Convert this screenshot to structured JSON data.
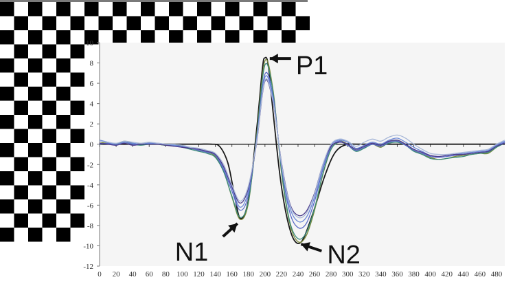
{
  "chart_data": {
    "type": "line",
    "title": "",
    "xlabel": "",
    "ylabel": "",
    "xlim": [
      0,
      490
    ],
    "ylim": [
      -12,
      10
    ],
    "x_ticks": [
      0,
      20,
      40,
      60,
      80,
      100,
      120,
      140,
      160,
      180,
      200,
      220,
      240,
      260,
      280,
      300,
      320,
      340,
      360,
      380,
      400,
      420,
      440,
      460,
      480
    ],
    "y_ticks": [
      10,
      8,
      6,
      4,
      2,
      0,
      -2,
      -4,
      -6,
      -8,
      -10,
      -12
    ],
    "grid": false,
    "legend": "none",
    "annotations": [
      {
        "label": "P1",
        "x": 200,
        "y": 8.5
      },
      {
        "label": "N1",
        "x": 170,
        "y": -7.4
      },
      {
        "label": "N2",
        "x": 237,
        "y": -9.7
      }
    ],
    "series": [
      {
        "color": "#1a1a1a",
        "x": [
          0,
          100,
          120,
          135,
          145,
          155,
          162,
          170,
          180,
          190,
          197,
          200,
          204,
          210,
          218,
          226,
          235,
          245,
          258,
          272,
          285,
          300,
          320,
          490
        ],
        "y": [
          0,
          0,
          0,
          0,
          -0.2,
          -1.8,
          -4.5,
          -7.3,
          -5.5,
          1.5,
          7.5,
          8.5,
          7.8,
          3.0,
          -3.0,
          -7.0,
          -9.4,
          -9.5,
          -6.8,
          -3.2,
          -0.8,
          0,
          0,
          0
        ]
      },
      {
        "color": "#7a8a3a",
        "x": [
          0,
          10,
          20,
          30,
          40,
          50,
          60,
          70,
          80,
          90,
          100,
          110,
          120,
          130,
          140,
          150,
          160,
          170,
          180,
          190,
          200,
          210,
          220,
          230,
          240,
          250,
          260,
          270,
          280,
          290,
          300,
          310,
          320,
          330,
          340,
          350,
          360,
          370,
          380,
          390,
          400,
          410,
          420,
          430,
          440,
          450,
          460,
          470,
          480,
          490
        ],
        "y": [
          0.1,
          0.2,
          0.0,
          0.3,
          0.1,
          0.0,
          0.1,
          0.0,
          -0.1,
          0.0,
          -0.2,
          -0.4,
          -0.6,
          -0.8,
          -1.2,
          -2.6,
          -5.2,
          -7.4,
          -5.8,
          1.0,
          8.2,
          5.2,
          -2.8,
          -7.8,
          -9.6,
          -9.0,
          -6.5,
          -3.0,
          -0.5,
          0.3,
          0.0,
          -0.6,
          -0.3,
          0.0,
          -0.3,
          0.2,
          0.4,
          0.0,
          -0.6,
          -1.0,
          -1.3,
          -1.5,
          -1.4,
          -1.2,
          -1.1,
          -1.0,
          -0.9,
          -0.9,
          -0.3,
          0.2
        ]
      },
      {
        "color": "#3a8a7a",
        "x": [
          0,
          10,
          20,
          30,
          40,
          50,
          60,
          70,
          80,
          90,
          100,
          110,
          120,
          130,
          140,
          150,
          160,
          170,
          180,
          190,
          200,
          210,
          220,
          230,
          240,
          250,
          260,
          270,
          280,
          290,
          300,
          310,
          320,
          330,
          340,
          350,
          360,
          370,
          380,
          390,
          400,
          410,
          420,
          430,
          440,
          450,
          460,
          470,
          480,
          490
        ],
        "y": [
          0.0,
          0.1,
          0.0,
          0.2,
          0.0,
          -0.1,
          0.0,
          0.0,
          -0.1,
          -0.1,
          -0.3,
          -0.5,
          -0.7,
          -0.9,
          -1.3,
          -2.7,
          -5.1,
          -7.2,
          -5.6,
          0.8,
          7.8,
          5.0,
          -2.6,
          -7.6,
          -9.3,
          -8.7,
          -6.3,
          -2.9,
          -0.5,
          0.2,
          -0.1,
          -0.7,
          -0.4,
          0.0,
          -0.2,
          0.1,
          0.2,
          -0.1,
          -0.7,
          -1.0,
          -1.4,
          -1.5,
          -1.4,
          -1.3,
          -1.2,
          -1.0,
          -0.9,
          -0.8,
          -0.3,
          0.1
        ]
      },
      {
        "color": "#5a6ac8",
        "x": [
          0,
          10,
          20,
          30,
          40,
          50,
          60,
          70,
          80,
          90,
          100,
          110,
          120,
          130,
          140,
          150,
          160,
          170,
          180,
          190,
          200,
          210,
          220,
          230,
          240,
          250,
          260,
          270,
          280,
          290,
          300,
          310,
          320,
          330,
          340,
          350,
          360,
          370,
          380,
          390,
          400,
          410,
          420,
          430,
          440,
          450,
          460,
          470,
          480,
          490
        ],
        "y": [
          0.0,
          0.1,
          -0.1,
          0.2,
          0.0,
          0.0,
          0.1,
          0.0,
          0.0,
          -0.1,
          -0.3,
          -0.4,
          -0.6,
          -0.8,
          -1.1,
          -2.5,
          -4.6,
          -6.5,
          -5.0,
          0.6,
          6.9,
          4.6,
          -2.2,
          -6.7,
          -8.2,
          -7.8,
          -5.6,
          -2.5,
          -0.3,
          0.3,
          -0.1,
          -0.6,
          -0.3,
          0.0,
          -0.2,
          0.2,
          0.3,
          -0.1,
          -0.6,
          -0.9,
          -1.2,
          -1.3,
          -1.2,
          -1.1,
          -1.0,
          -0.9,
          -0.8,
          -0.7,
          -0.2,
          0.2
        ]
      },
      {
        "color": "#6a88d8",
        "x": [
          0,
          10,
          20,
          30,
          40,
          50,
          60,
          70,
          80,
          90,
          100,
          110,
          120,
          130,
          140,
          150,
          160,
          170,
          180,
          190,
          200,
          210,
          220,
          230,
          240,
          250,
          260,
          270,
          280,
          290,
          300,
          310,
          320,
          330,
          340,
          350,
          360,
          370,
          380,
          390,
          400,
          410,
          420,
          430,
          440,
          450,
          460,
          470,
          480,
          490
        ],
        "y": [
          0.4,
          0.2,
          0.0,
          0.2,
          0.1,
          0.0,
          0.1,
          0.1,
          0.0,
          -0.1,
          -0.2,
          -0.4,
          -0.5,
          -0.7,
          -1.0,
          -2.3,
          -4.3,
          -6.2,
          -4.6,
          0.4,
          6.6,
          4.3,
          -2.0,
          -6.2,
          -7.6,
          -7.2,
          -5.2,
          -2.2,
          -0.1,
          0.4,
          0.2,
          -0.4,
          -0.1,
          0.2,
          0.0,
          0.4,
          0.6,
          0.2,
          -0.3,
          -0.7,
          -1.1,
          -1.2,
          -1.1,
          -1.0,
          -0.9,
          -0.8,
          -0.7,
          -0.6,
          -0.1,
          0.3
        ]
      },
      {
        "color": "#4a3a8a",
        "x": [
          0,
          10,
          20,
          30,
          40,
          50,
          60,
          70,
          80,
          90,
          100,
          110,
          120,
          130,
          140,
          150,
          160,
          170,
          180,
          190,
          200,
          210,
          220,
          230,
          240,
          250,
          260,
          270,
          280,
          290,
          300,
          310,
          320,
          330,
          340,
          350,
          360,
          370,
          380,
          390,
          400,
          410,
          420,
          430,
          440,
          450,
          460,
          470,
          480,
          490
        ],
        "y": [
          0.1,
          0.0,
          -0.1,
          0.1,
          -0.1,
          0.0,
          0.0,
          0.0,
          -0.1,
          -0.2,
          -0.3,
          -0.4,
          -0.5,
          -0.7,
          -1.0,
          -2.2,
          -4.2,
          -5.8,
          -4.3,
          0.2,
          6.2,
          4.0,
          -1.8,
          -5.8,
          -7.0,
          -6.6,
          -4.8,
          -2.0,
          -0.2,
          0.2,
          0.0,
          -0.5,
          -0.2,
          0.1,
          -0.1,
          0.3,
          0.4,
          0.0,
          -0.5,
          -0.8,
          -1.1,
          -1.2,
          -1.1,
          -1.0,
          -1.0,
          -0.9,
          -0.8,
          -0.7,
          -0.2,
          0.1
        ]
      },
      {
        "color": "#a8b8d8",
        "x": [
          0,
          10,
          20,
          30,
          40,
          50,
          60,
          70,
          80,
          90,
          100,
          110,
          120,
          130,
          140,
          150,
          160,
          170,
          180,
          190,
          200,
          210,
          220,
          230,
          240,
          250,
          260,
          270,
          280,
          290,
          300,
          310,
          320,
          330,
          340,
          350,
          360,
          370,
          380,
          390,
          400,
          410,
          420,
          430,
          440,
          450,
          460,
          470,
          480,
          490
        ],
        "y": [
          0.3,
          0.2,
          0.1,
          0.3,
          0.2,
          0.1,
          0.2,
          0.1,
          0.0,
          0.0,
          -0.1,
          -0.3,
          -0.4,
          -0.6,
          -0.9,
          -2.0,
          -4.0,
          -5.6,
          -4.1,
          0.3,
          6.3,
          4.1,
          -1.9,
          -5.9,
          -7.2,
          -6.8,
          -4.9,
          -2.0,
          0.0,
          0.5,
          0.3,
          -0.2,
          0.2,
          0.5,
          0.3,
          0.7,
          0.9,
          0.6,
          0.0,
          -0.5,
          -0.9,
          -1.0,
          -1.0,
          -0.9,
          -0.8,
          -0.7,
          -0.6,
          -0.5,
          0.0,
          0.4
        ]
      }
    ]
  }
}
